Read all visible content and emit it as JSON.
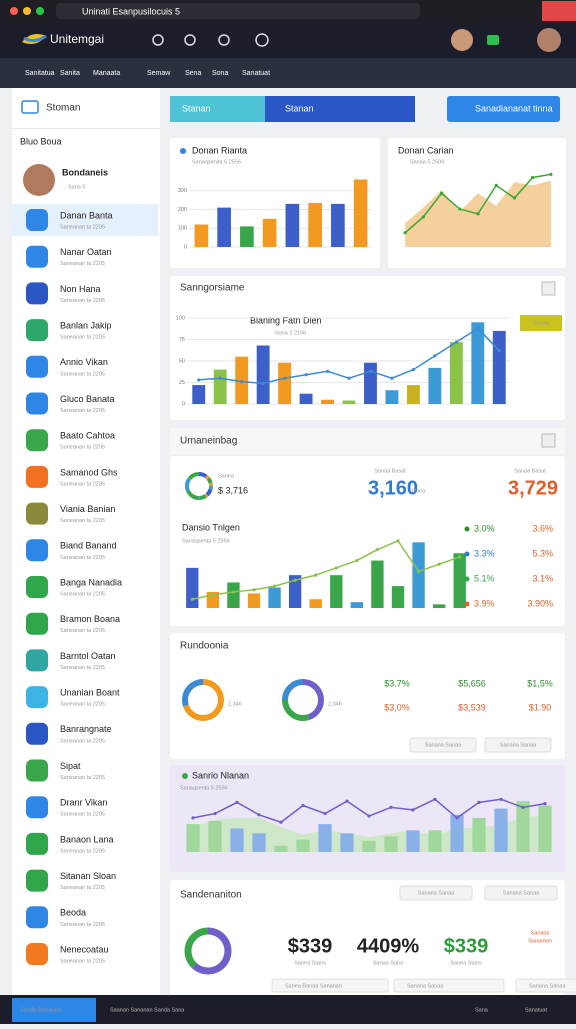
{
  "browser": {
    "tab": "Uninati Esanpusilocuis 5"
  },
  "app": {
    "name": "Unitemgai"
  },
  "nav": [
    "Sanitatua",
    "Sanita",
    "Manaata",
    "Semaw",
    "Sena",
    "Sona",
    "Sanatuat"
  ],
  "sidebar": {
    "title": "Stoman",
    "section": "Bluo Boua",
    "profile": {
      "name": "Bondaneis",
      "sub": "Sana 0"
    },
    "items": [
      {
        "title": "Danan Banta",
        "sub": "Saneanan ta 2205"
      },
      {
        "title": "Nanar Oatan",
        "sub": "Saneanan ta 2205"
      },
      {
        "title": "Non Hana",
        "sub": "Saneanan ta 2205"
      },
      {
        "title": "Banlan Jakip",
        "sub": "Saneanan ta 2205"
      },
      {
        "title": "Annio Vikan",
        "sub": "Saneanan ta 2205"
      },
      {
        "title": "Gluco Banata",
        "sub": "Saneanan ta 2205"
      },
      {
        "title": "Baato Cahtoa",
        "sub": "Saneanan ta 2205"
      },
      {
        "title": "Samanod Ghs",
        "sub": "Saneanan ta 2205"
      },
      {
        "title": "Viania Banian",
        "sub": "Saneanan ta 2205"
      },
      {
        "title": "Biand Banand",
        "sub": "Saneanan ta 2205"
      },
      {
        "title": "Banga Nanadia",
        "sub": "Saneanan ta 2205"
      },
      {
        "title": "Bramon Boana",
        "sub": "Saneanan ta 2205"
      },
      {
        "title": "Barntol Oatan",
        "sub": "Saneanan ta 2205"
      },
      {
        "title": "Unanian Boant",
        "sub": "Saneanan ta 2205"
      },
      {
        "title": "Banrangnate",
        "sub": "Saneanan ta 2205"
      },
      {
        "title": "Sipat",
        "sub": "Saneanan ta 2205"
      },
      {
        "title": "Dranr Vikan",
        "sub": "Saneanan ta 2205"
      },
      {
        "title": "Banaon Lana",
        "sub": "Saneanan ta 2205"
      },
      {
        "title": "Sitanan Sloan",
        "sub": "Saneanan ta 2205"
      },
      {
        "title": "Beoda",
        "sub": "Saneanan ta 2205"
      },
      {
        "title": "Nenecoatau",
        "sub": "Saneanan ta 2205"
      }
    ]
  },
  "toolbar": {
    "tabs": [
      "Stanan",
      "Stanan"
    ],
    "button": "Sanadiananat tinna"
  },
  "card_bars": {
    "title": "Donan Rianta",
    "subtitle": "Sanaqsenita 5 2556",
    "ylim": [
      0,
      400
    ],
    "yticks": [
      0,
      100,
      200,
      300
    ],
    "series": [
      {
        "type": "bar",
        "colors": [
          "#f29a1f",
          "#3c5fc9",
          "#3aa64a",
          "#f29a1f",
          "#3c5fc9",
          "#f29a1f",
          "#3c5fc9",
          "#f29a1f"
        ],
        "values": [
          120,
          210,
          110,
          150,
          230,
          235,
          230,
          360
        ]
      }
    ]
  },
  "card_area": {
    "title": "Donan Carian",
    "subtitle": "Sanaa 5 2506",
    "ylim": [
      0,
      100
    ],
    "series": [
      {
        "type": "area",
        "color": "#f2c88c",
        "values": [
          30,
          50,
          72,
          45,
          68,
          52,
          82,
          78,
          84
        ]
      },
      {
        "type": "line",
        "color": "#3aa635",
        "values": [
          18,
          38,
          68,
          48,
          42,
          78,
          62,
          88,
          92
        ]
      }
    ]
  },
  "section_a": {
    "title": "Sanngorsiame",
    "chart": {
      "title": "Blaning Fatn Dien",
      "subtitle": "Sona 2 2156",
      "legend": "Sanaa",
      "ylim": [
        0,
        100
      ],
      "yticks": [
        0,
        25,
        50,
        75,
        100
      ],
      "series": [
        {
          "type": "bar",
          "colors": [
            "#3c5fc9",
            "#8bc34a",
            "#f29a1f",
            "#3c5fc9",
            "#f29a1f",
            "#3c5fc9",
            "#f29a1f",
            "#8bc34a",
            "#3c5fc9",
            "#3c9ad6",
            "#c9b21f",
            "#3c9ad6",
            "#8bc34a",
            "#3c9ad6",
            "#3c5fc9"
          ],
          "values": [
            22,
            40,
            55,
            68,
            48,
            12,
            5,
            4,
            48,
            16,
            22,
            42,
            72,
            95,
            85
          ]
        },
        {
          "type": "line",
          "color": "#3c8ad6",
          "values": [
            28,
            30,
            26,
            24,
            30,
            34,
            38,
            30,
            38,
            30,
            40,
            56,
            72,
            88,
            62
          ]
        }
      ]
    }
  },
  "section_b": {
    "title": "Urnaneinbag",
    "stat_label": "Sanea",
    "stat_small": "$ 3,716",
    "col1_label": "Sanaa Basat",
    "col1_value": "3,160",
    "col1_unit": "Dana",
    "col2_label": "Sanaa Basat",
    "col2_value": "3,729",
    "chart": {
      "title": "Dansio Tnlgen",
      "subtitle": "Sanaqsenta 5 2556",
      "ylim": [
        0,
        100
      ],
      "series": [
        {
          "type": "bar",
          "colors": [
            "#3c5fc9",
            "#f29a1f",
            "#3aa64a",
            "#f29a1f",
            "#3c9ad6",
            "#3c5fc9",
            "#f29a1f",
            "#3aa64a",
            "#3c9ad6",
            "#3aa64a",
            "#3aa64a",
            "#3c9ad6",
            "#3aa64a",
            "#3aa64a"
          ],
          "values": [
            55,
            22,
            35,
            20,
            28,
            45,
            12,
            45,
            8,
            65,
            30,
            90,
            5,
            75
          ]
        },
        {
          "type": "line",
          "color": "#8bc34a",
          "values": [
            12,
            18,
            22,
            25,
            30,
            38,
            45,
            55,
            65,
            80,
            92,
            50,
            60,
            70
          ]
        }
      ]
    },
    "legend": [
      "3.0%",
      "3.3%",
      "5.1%",
      "3.9%"
    ],
    "legend_right": [
      "3.6%",
      "5.3%",
      "3.1%",
      "3.90%"
    ]
  },
  "section_c": {
    "title": "Rundoonia",
    "donut1": {
      "values": [
        70,
        30
      ],
      "colors": [
        "#f29a1f",
        "#3c8ad6"
      ]
    },
    "donut1_label": "2,346",
    "donut2": {
      "values": [
        45,
        30,
        25
      ],
      "colors": [
        "#6e5fc9",
        "#3aa64a",
        "#3c8ad6"
      ]
    },
    "donut2_label": "2,346",
    "cols": [
      [
        "$3.7%",
        "$3,0%"
      ],
      [
        "$5,656",
        "$3,539"
      ],
      [
        "$1,5%",
        "$1.90"
      ]
    ],
    "dropdowns": [
      "Sanana Sanaa",
      "Sanana Sanaa"
    ]
  },
  "section_d": {
    "title": "Sanrio Nlanan",
    "subtitle": "Sanaqsenta 5 2556",
    "ylim": [
      0,
      100
    ],
    "series": [
      {
        "type": "area",
        "color": "#c8e6c0",
        "values": [
          40,
          52,
          55,
          55,
          40,
          28,
          35,
          30,
          24,
          30,
          35,
          25,
          40,
          38,
          45,
          55,
          60
        ]
      },
      {
        "type": "bar",
        "colors": [
          "#9fd89a",
          "#9fd89a",
          "#8ab0e8",
          "#8ab0e8",
          "#9fd89a",
          "#9fd89a",
          "#8ab0e8",
          "#8ab0e8",
          "#9fd89a",
          "#9fd89a",
          "#8ab0e8",
          "#9fd89a",
          "#8ab0e8",
          "#9fd89a",
          "#8ab0e8",
          "#9fd89a",
          "#9fd89a"
        ],
        "values": [
          45,
          50,
          38,
          30,
          10,
          20,
          45,
          30,
          18,
          25,
          35,
          35,
          60,
          55,
          70,
          82,
          75
        ]
      },
      {
        "type": "line",
        "color": "#6e5fc9",
        "values": [
          55,
          62,
          80,
          60,
          48,
          75,
          62,
          82,
          58,
          72,
          68,
          85,
          55,
          80,
          85,
          72,
          78
        ]
      }
    ]
  },
  "section_e": {
    "title": "Sandenaniton",
    "dropdowns": [
      "Sanana Sanaa",
      "Sanana Sanaa"
    ],
    "donut": {
      "values": [
        62,
        38
      ],
      "colors": [
        "#6e5fc9",
        "#3aa64a"
      ]
    },
    "stats": [
      {
        "value": "$339",
        "label": "Sanea Stans"
      },
      {
        "value": "4409%",
        "label": "Sanaa Sana"
      },
      {
        "value": "$339",
        "label": "Sanea Stans"
      }
    ],
    "side": [
      "Sanasa",
      "Sanamon"
    ],
    "chips": [
      "Sanea Banaa Sananan",
      "Sanana Sanaa",
      "Sanana Sanaa"
    ]
  },
  "footer": {
    "button": "Sanda Stanauan",
    "text": "Saanan Sananan Sanda Sana",
    "right": [
      "Sana",
      "Sanatuat"
    ]
  }
}
